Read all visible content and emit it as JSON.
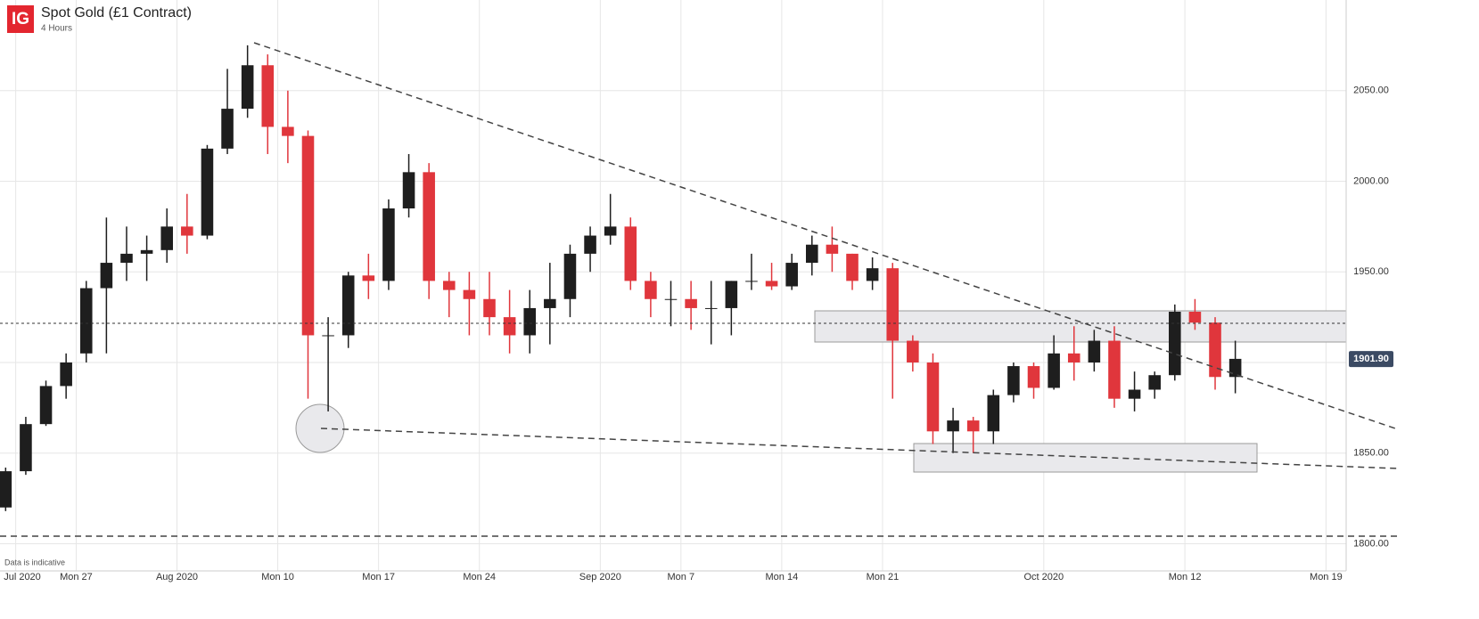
{
  "chart_data": {
    "type": "candlestick",
    "title": "Spot Gold (£1 Contract)",
    "subtitle": "4 Hours",
    "logo": "IG",
    "footnote": "Data is indicative",
    "x": [
      "2020-07-21",
      "2020-07-22",
      "2020-07-23",
      "2020-07-24",
      "2020-07-27",
      "2020-07-28",
      "2020-07-29",
      "2020-07-30",
      "2020-07-31",
      "2020-08-03",
      "2020-08-04",
      "2020-08-05",
      "2020-08-06",
      "2020-08-07",
      "2020-08-10",
      "2020-08-11",
      "2020-08-12",
      "2020-08-13",
      "2020-08-14",
      "2020-08-17",
      "2020-08-18",
      "2020-08-19",
      "2020-08-20",
      "2020-08-21",
      "2020-08-24",
      "2020-08-25",
      "2020-08-26",
      "2020-08-27",
      "2020-08-28",
      "2020-08-31",
      "2020-09-01",
      "2020-09-02",
      "2020-09-03",
      "2020-09-04",
      "2020-09-07",
      "2020-09-08",
      "2020-09-09",
      "2020-09-10",
      "2020-09-11",
      "2020-09-14",
      "2020-09-15",
      "2020-09-16",
      "2020-09-17",
      "2020-09-18",
      "2020-09-21",
      "2020-09-22",
      "2020-09-23",
      "2020-09-24",
      "2020-09-25",
      "2020-09-28",
      "2020-09-29",
      "2020-09-30",
      "2020-10-01",
      "2020-10-02",
      "2020-10-05",
      "2020-10-06",
      "2020-10-07",
      "2020-10-08",
      "2020-10-09",
      "2020-10-12",
      "2020-10-13",
      "2020-10-14"
    ],
    "open": [
      1820,
      1840,
      1866,
      1887,
      1905,
      1941,
      1955,
      1960,
      1962,
      1975,
      1970,
      2018,
      2040,
      2064,
      2030,
      2025,
      1915,
      1915,
      1948,
      1945,
      1985,
      2005,
      1945,
      1940,
      1935,
      1925,
      1915,
      1930,
      1935,
      1960,
      1970,
      1975,
      1945,
      1935,
      1935,
      1930,
      1930,
      1945,
      1945,
      1942,
      1955,
      1965,
      1960,
      1945,
      1952,
      1912,
      1900,
      1862,
      1868,
      1862,
      1882,
      1898,
      1886,
      1905,
      1900,
      1912,
      1880,
      1885,
      1893,
      1928,
      1922,
      1892
    ],
    "high": [
      1842,
      1870,
      1890,
      1905,
      1945,
      1980,
      1975,
      1970,
      1985,
      1993,
      2020,
      2062,
      2075,
      2070,
      2050,
      2028,
      1925,
      1950,
      1960,
      1990,
      2015,
      2010,
      1950,
      1950,
      1950,
      1940,
      1940,
      1955,
      1965,
      1975,
      1993,
      1980,
      1950,
      1945,
      1945,
      1945,
      1945,
      1960,
      1955,
      1960,
      1970,
      1975,
      1960,
      1958,
      1955,
      1915,
      1905,
      1875,
      1870,
      1885,
      1900,
      1900,
      1915,
      1920,
      1918,
      1920,
      1895,
      1895,
      1932,
      1935,
      1925,
      1912
    ],
    "low": [
      1818,
      1838,
      1865,
      1880,
      1900,
      1905,
      1945,
      1945,
      1955,
      1960,
      1968,
      2015,
      2035,
      2015,
      2010,
      1880,
      1873,
      1908,
      1935,
      1940,
      1980,
      1935,
      1925,
      1915,
      1915,
      1905,
      1905,
      1910,
      1925,
      1950,
      1965,
      1940,
      1925,
      1920,
      1918,
      1910,
      1915,
      1940,
      1940,
      1940,
      1948,
      1950,
      1940,
      1940,
      1880,
      1895,
      1855,
      1850,
      1850,
      1855,
      1878,
      1880,
      1885,
      1890,
      1895,
      1875,
      1873,
      1880,
      1890,
      1918,
      1885,
      1883
    ],
    "close": [
      1840,
      1866,
      1887,
      1900,
      1941,
      1955,
      1960,
      1962,
      1975,
      1970,
      2018,
      2040,
      2064,
      2030,
      2025,
      1915,
      1915,
      1948,
      1945,
      1985,
      2005,
      1945,
      1940,
      1935,
      1925,
      1915,
      1930,
      1935,
      1960,
      1970,
      1975,
      1945,
      1935,
      1935,
      1930,
      1930,
      1945,
      1945,
      1942,
      1955,
      1965,
      1960,
      1945,
      1952,
      1912,
      1900,
      1862,
      1868,
      1862,
      1882,
      1898,
      1886,
      1905,
      1900,
      1912,
      1880,
      1885,
      1893,
      1928,
      1922,
      1892,
      1902
    ],
    "up_color": "#1e1e1e",
    "down_color": "#e0363c",
    "last_price": {
      "value": 1901.9,
      "label": "1901.90"
    },
    "xlim": [
      "2020-07-20",
      "2020-10-20"
    ],
    "xticks": [
      {
        "value": "2020-07-22",
        "label": "Jul 2020"
      },
      {
        "value": "2020-07-27",
        "label": "Mon 27"
      },
      {
        "value": "2020-08-03",
        "label": "Aug 2020"
      },
      {
        "value": "2020-08-10",
        "label": "Mon 10"
      },
      {
        "value": "2020-08-17",
        "label": "Mon 17"
      },
      {
        "value": "2020-08-24",
        "label": "Mon 24"
      },
      {
        "value": "2020-09-01",
        "label": "Sep 2020"
      },
      {
        "value": "2020-09-07",
        "label": "Mon 7"
      },
      {
        "value": "2020-09-14",
        "label": "Mon 14"
      },
      {
        "value": "2020-09-21",
        "label": "Mon 21"
      },
      {
        "value": "2020-10-01",
        "label": "Oct 2020"
      },
      {
        "value": "2020-10-12",
        "label": "Mon 12"
      },
      {
        "value": "2020-10-19",
        "label": "Mon 19"
      }
    ],
    "ylim": [
      1785,
      2100
    ],
    "yticks": [
      {
        "value": 1800,
        "label": "1800.00"
      },
      {
        "value": 1850,
        "label": "1850.00"
      },
      {
        "value": 1900,
        "label": "1900.00"
      },
      {
        "value": 1950,
        "label": "1950.00"
      },
      {
        "value": 2000,
        "label": "2000.00"
      },
      {
        "value": 2050,
        "label": "2050.00"
      }
    ],
    "grid": true
  }
}
